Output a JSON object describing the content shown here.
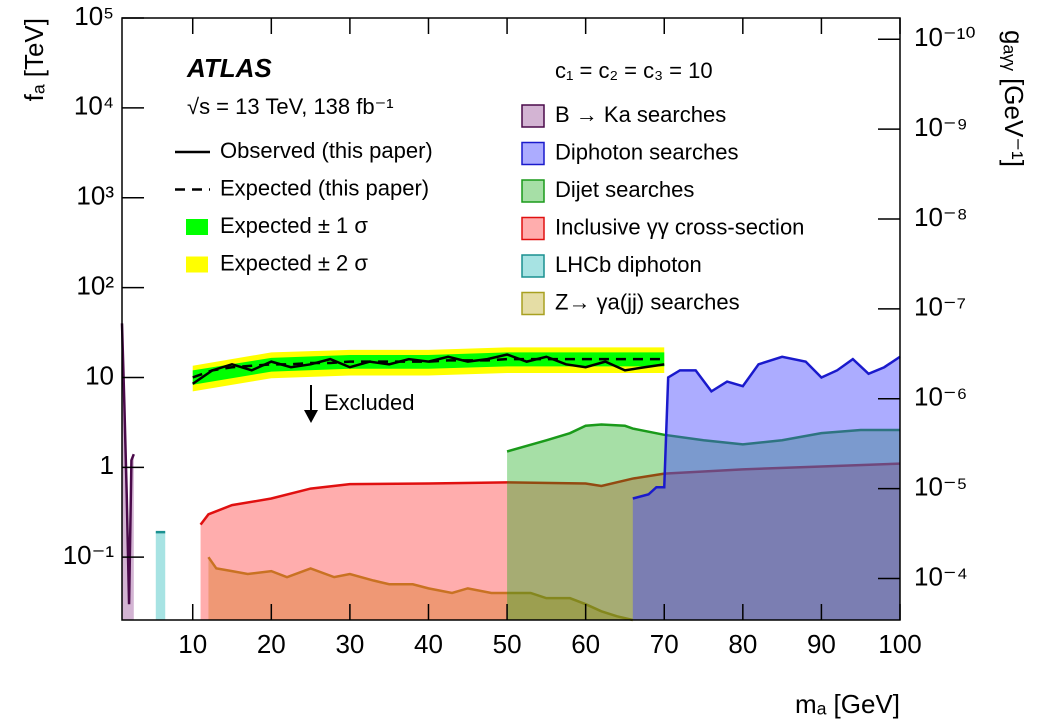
{
  "chart_data": {
    "type": "area",
    "xlabel": "mₐ [GeV]",
    "ylabel": "fₐ [TeV]",
    "y2label": "gₐᵧᵧ [GeV⁻¹]",
    "annotations": [
      "ATLAS",
      "√s = 13 TeV, 138 fb⁻¹",
      "c₁ = c₂ = c₃ = 10",
      "Excluded"
    ],
    "xlim": [
      1,
      100
    ],
    "xticks": [
      10,
      20,
      30,
      40,
      50,
      60,
      70,
      80,
      90,
      100
    ],
    "ylim": [
      0.02,
      100000
    ],
    "yscale": "log",
    "yticks": [
      {
        "value": 100000,
        "label": "10⁵"
      },
      {
        "value": 10000,
        "label": "10⁴"
      },
      {
        "value": 1000,
        "label": "10³"
      },
      {
        "value": 100,
        "label": "10²"
      },
      10,
      1,
      {
        "value": 0.1,
        "label": "10⁻¹"
      }
    ],
    "y2lim": [
      0.00029,
      5.8e-11
    ],
    "y2scale": "log",
    "y2ticks": [
      {
        "value": 1e-10,
        "label": "10⁻¹⁰"
      },
      {
        "value": 1e-09,
        "label": "10⁻⁹"
      },
      {
        "value": 1e-08,
        "label": "10⁻⁸"
      },
      {
        "value": 1e-07,
        "label": "10⁻⁷"
      },
      {
        "value": 1e-06,
        "label": "10⁻⁶"
      },
      {
        "value": 1e-05,
        "label": "10⁻⁵"
      },
      {
        "value": 0.0001,
        "label": "10⁻⁴"
      }
    ],
    "series": [
      {
        "name": "Observed (this paper)",
        "kind": "line",
        "color": "#000000",
        "x": [
          10,
          12.5,
          15,
          17.5,
          20,
          22.5,
          25,
          27.5,
          30,
          32.5,
          35,
          37.5,
          40,
          42.5,
          45,
          47.5,
          50,
          52.5,
          55,
          57.5,
          60,
          62.5,
          65,
          67.5,
          70
        ],
        "values": [
          8.5,
          12,
          14,
          12,
          15,
          13,
          14,
          16,
          13,
          15,
          14,
          16,
          15,
          17,
          15,
          16,
          18,
          15,
          17,
          14,
          13,
          15,
          12,
          13,
          14
        ]
      },
      {
        "name": "Expected (this paper)",
        "kind": "dashed",
        "color": "#000000",
        "x": [
          10,
          12.5,
          15,
          17.5,
          20,
          22.5,
          25,
          27.5,
          30,
          32.5,
          35,
          37.5,
          40,
          42.5,
          45,
          47.5,
          50,
          52.5,
          55,
          57.5,
          60,
          62.5,
          65,
          67.5,
          70
        ],
        "values": [
          10,
          12,
          13,
          13.5,
          14,
          14,
          14.5,
          14.5,
          15,
          15,
          15,
          15,
          15,
          15.5,
          15.5,
          15.5,
          16,
          16,
          16,
          16,
          16,
          16,
          16,
          16,
          16
        ]
      },
      {
        "name": "Expected ± 1 σ",
        "kind": "band",
        "color": "#00ff00",
        "x": [
          10,
          20,
          30,
          40,
          50,
          60,
          70
        ],
        "lower": [
          8.3,
          11.6,
          12.5,
          12.5,
          13.3,
          13.3,
          13.3
        ],
        "upper": [
          12,
          16.5,
          17.8,
          17.8,
          19,
          19,
          19
        ]
      },
      {
        "name": "Expected ± 2 σ",
        "kind": "band",
        "color": "#ffff00",
        "x": [
          10,
          20,
          30,
          40,
          50,
          60,
          70
        ],
        "lower": [
          7,
          9.8,
          10.5,
          10.5,
          11.2,
          11.2,
          11.2
        ],
        "upper": [
          13.5,
          19,
          20.3,
          20.3,
          21.6,
          21.6,
          21.6
        ]
      },
      {
        "name": "B → Ka searches",
        "kind": "area",
        "color": "#4a0a4a",
        "fill": "rgba(128,40,128,0.35)",
        "x": [
          1,
          1.3,
          1.6,
          1.9,
          2.2,
          2.5
        ],
        "values": [
          40,
          5,
          0.5,
          0.03,
          1.2,
          1.4
        ]
      },
      {
        "name": "Diphoton searches",
        "kind": "area",
        "color": "#1a1acc",
        "fill": "rgba(70,70,255,0.45)",
        "x": [
          66,
          68,
          69,
          70,
          70.5,
          72,
          74,
          76,
          78,
          80,
          82,
          85,
          88,
          90,
          92,
          94,
          96,
          98,
          100
        ],
        "values": [
          0.45,
          0.5,
          0.6,
          0.6,
          10,
          12,
          12,
          7,
          9,
          8,
          14,
          17,
          15,
          10,
          12,
          16,
          11,
          13,
          17
        ]
      },
      {
        "name": "Dijet searches",
        "kind": "area",
        "color": "#1a9a1a",
        "fill": "rgba(20,170,20,0.38)",
        "x": [
          50,
          55,
          58,
          60,
          62,
          65,
          66,
          70,
          75,
          80,
          85,
          90,
          95,
          100
        ],
        "values": [
          1.5,
          2.0,
          2.4,
          2.9,
          3.0,
          2.9,
          2.7,
          2.3,
          2.0,
          1.8,
          2.0,
          2.4,
          2.6,
          2.6
        ]
      },
      {
        "name": "Inclusive γγ cross-section",
        "kind": "area",
        "color": "#e01010",
        "fill": "rgba(255,40,40,0.38)",
        "x": [
          11,
          12,
          15,
          18,
          20,
          25,
          30,
          40,
          50,
          60,
          62,
          66,
          70,
          80,
          90,
          100
        ],
        "values": [
          0.23,
          0.3,
          0.38,
          0.42,
          0.45,
          0.58,
          0.65,
          0.66,
          0.68,
          0.66,
          0.62,
          0.75,
          0.85,
          0.95,
          1.02,
          1.1
        ]
      },
      {
        "name": "LHCb diphoton",
        "kind": "area",
        "color": "#1a9090",
        "fill": "rgba(80,200,200,0.5)",
        "x": [
          5.3,
          6.5
        ],
        "values": [
          0.19,
          0.19
        ]
      },
      {
        "name": "Z→ γa(jj) searches",
        "kind": "area",
        "color": "#a8a020",
        "fill": "rgba(190,170,30,0.4)",
        "x": [
          12,
          13,
          15,
          17,
          20,
          22,
          25,
          28,
          30,
          33,
          35,
          38,
          40,
          43,
          45,
          48,
          50,
          53,
          55,
          58,
          60,
          62,
          64,
          66
        ],
        "values": [
          0.1,
          0.075,
          0.07,
          0.065,
          0.07,
          0.06,
          0.075,
          0.06,
          0.065,
          0.055,
          0.05,
          0.05,
          0.045,
          0.04,
          0.045,
          0.04,
          0.04,
          0.04,
          0.035,
          0.035,
          0.03,
          0.025,
          0.022,
          0.02
        ]
      }
    ]
  }
}
